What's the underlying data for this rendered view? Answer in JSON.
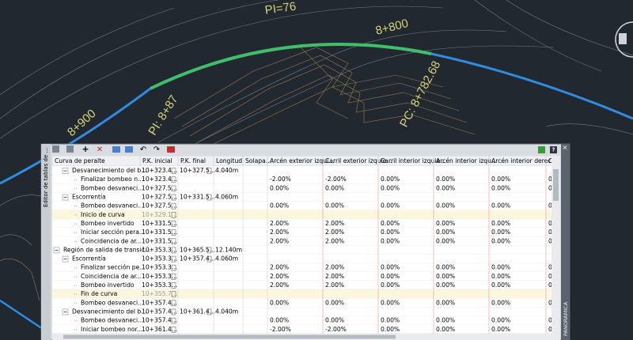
{
  "drawing": {
    "labels": [
      "PI=76",
      "8+800",
      "PC: 8+782.68",
      "8+900",
      "PI: 8+87"
    ]
  },
  "panel": {
    "side_tab": "Editor de tablas de ...",
    "right_tab": "PANORÁMICA"
  },
  "table": {
    "columns": [
      "Curva de peralte",
      "P.K. inicial",
      "P.K. final",
      "Longitud",
      "Solapa...",
      "Arcén exterior izqui...",
      "Carril exterior izquie...",
      "Carril interior izquie...",
      "Arcén interior izqu...",
      "Arcén interior derec...",
      "Carr"
    ],
    "rows": [
      {
        "name": "Desvanecimiento del b...",
        "level": 1,
        "pk_inicial": "10+323.4...",
        "pk_final": "10+327.5...",
        "longitud": "4.040m"
      },
      {
        "name": "Finalizar bombeo n...",
        "level": 2,
        "pk_inicial": "10+323.4...",
        "values": [
          "-2.00%",
          "-2.00%",
          "0.00%",
          "0.00%",
          "0.00%",
          "0"
        ]
      },
      {
        "name": "Bombeo desvaneci...",
        "level": 2,
        "pk_inicial": "10+327.5...",
        "values": [
          "0.00%",
          "0.00%",
          "0.00%",
          "0.00%",
          "0.00%",
          "0"
        ]
      },
      {
        "name": "Escorrentía",
        "level": 1,
        "pk_inicial": "10+327.5...",
        "pk_final": "10+331.5...",
        "longitud": "4.060m"
      },
      {
        "name": "Bombeo desvaneci...",
        "level": 2,
        "pk_inicial": "10+327.5...",
        "values": [
          "0.00%",
          "0.00%",
          "0.00%",
          "0.00%",
          "0.00%",
          "0"
        ]
      },
      {
        "name": "Inicio de curva",
        "level": 2,
        "pk_inicial": "10+329.1...",
        "highlight": true
      },
      {
        "name": "Bombeo invertido",
        "level": 2,
        "pk_inicial": "10+331.5...",
        "values": [
          "2.00%",
          "2.00%",
          "0.00%",
          "0.00%",
          "0.00%",
          "0"
        ]
      },
      {
        "name": "Iniciar sección pera...",
        "level": 2,
        "pk_inicial": "10+331.5...",
        "values": [
          "2.00%",
          "2.00%",
          "0.00%",
          "0.00%",
          "0.00%",
          "0"
        ]
      },
      {
        "name": "Coincidencia de ar...",
        "level": 2,
        "pk_inicial": "10+331.5...",
        "values": [
          "2.00%",
          "2.00%",
          "0.00%",
          "0.00%",
          "0.00%",
          "0"
        ]
      },
      {
        "name": "Región de salida de transic...",
        "level": 0,
        "pk_inicial": "10+353.3...",
        "pk_final": "10+365.5...",
        "longitud": "12.140m"
      },
      {
        "name": "Escorrentía",
        "level": 1,
        "pk_inicial": "10+353.3...",
        "pk_final": "10+357.4...",
        "longitud": "4.060m"
      },
      {
        "name": "Finalizar sección pe...",
        "level": 2,
        "pk_inicial": "10+353.3...",
        "values": [
          "2.00%",
          "2.00%",
          "0.00%",
          "0.00%",
          "0.00%",
          "0"
        ]
      },
      {
        "name": "Coincidencia de ar...",
        "level": 2,
        "pk_inicial": "10+353.3...",
        "values": [
          "2.00%",
          "2.00%",
          "0.00%",
          "0.00%",
          "0.00%",
          "0"
        ]
      },
      {
        "name": "Bombeo invertido",
        "level": 2,
        "pk_inicial": "10+353.3...",
        "values": [
          "2.00%",
          "2.00%",
          "0.00%",
          "0.00%",
          "0.00%",
          "0"
        ]
      },
      {
        "name": "Fin de curva",
        "level": 2,
        "pk_inicial": "10+355.7...",
        "highlight": true
      },
      {
        "name": "Bombeo desvaneci...",
        "level": 2,
        "pk_inicial": "10+357.4...",
        "values": [
          "0.00%",
          "0.00%",
          "0.00%",
          "0.00%",
          "0.00%",
          "0"
        ]
      },
      {
        "name": "Desvanecimiento del b...",
        "level": 1,
        "pk_inicial": "10+357.4...",
        "pk_final": "10+361.4...",
        "longitud": "4.040m"
      },
      {
        "name": "Bombeo desvaneci...",
        "level": 2,
        "pk_inicial": "10+357.4...",
        "values": [
          "0.00%",
          "0.00%",
          "0.00%",
          "0.00%",
          "0.00%",
          "0"
        ]
      },
      {
        "name": "Iniciar bombeo nor...",
        "level": 2,
        "pk_inicial": "10+361.4...",
        "values": [
          "-2.00%",
          "-2.00%",
          "0.00%",
          "0.00%",
          "0.00%",
          "0"
        ]
      }
    ]
  }
}
